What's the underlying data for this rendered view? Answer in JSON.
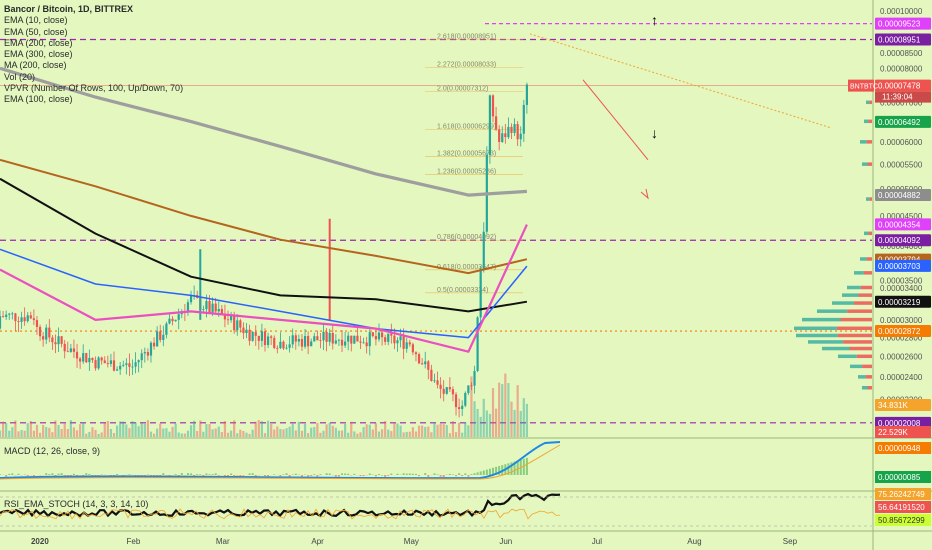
{
  "title": "Bancor / Bitcoin, 1D, BITTREX",
  "indicators": [
    "EMA (10, close)",
    "EMA (50, close)",
    "EMA (200, close)",
    "EMA (300, close)",
    "MA (200, close)",
    "Vol (20)",
    "VPVR (Number Of Rows, 100, Up/Down, 70)",
    "EMA (100, close)"
  ],
  "macd_label": "MACD (12, 26, close, 9)",
  "rsi_label": "RSI_EMA_STOCH (14, 3, 3, 14, 10)",
  "colors": {
    "background": "#e3f7bf",
    "up": "#26a69a",
    "down": "#ef5350",
    "ema10": "#16a34a",
    "ema50": "#ec4fbf",
    "ema100": "#2962ff",
    "ema200": "#111111",
    "ema300": "#b5651d",
    "ma200": "#9e9e9e",
    "level_line": "#9c27b0",
    "fib": "#f4a42a"
  },
  "price_axis": {
    "ticks": [
      "0.00010000",
      "0.00009500",
      "0.00008500",
      "0.00008000",
      "0.00007500",
      "0.00007000",
      "0.00006500",
      "0.00006000",
      "0.00005500",
      "0.00005000",
      "0.00004500",
      "0.00004000",
      "0.00003500",
      "0.00003400",
      "0.00003000",
      "0.00002800",
      "0.00002600",
      "0.00002400",
      "0.00002200",
      "0.00002000"
    ]
  },
  "price_tags": [
    {
      "text": "0.00009523",
      "color": "#e040fb"
    },
    {
      "text": "0.00008951",
      "color": "#7b1fa2"
    },
    {
      "text": "0.00007478",
      "color": "#ef5350",
      "symbol": "BNTBTC",
      "countdown": "11:39:04"
    },
    {
      "text": "0.00006492",
      "color": "#16a34a"
    },
    {
      "text": "0.00004882",
      "color": "#8d8d8d"
    },
    {
      "text": "0.00004354",
      "color": "#e040fb"
    },
    {
      "text": "0.00004092",
      "color": "#7b1fa2"
    },
    {
      "text": "0.00003794",
      "color": "#b5651d"
    },
    {
      "text": "0.00003703",
      "color": "#2962ff"
    },
    {
      "text": "0.00003219",
      "color": "#111111"
    },
    {
      "text": "0.00002872",
      "color": "#f57c00"
    },
    {
      "text": "34.831K",
      "color": "#f4a42a"
    },
    {
      "text": "0.00002008",
      "color": "#7b1fa2"
    },
    {
      "text": "22.529K",
      "color": "#ef5350"
    }
  ],
  "macd_tags": [
    {
      "text": "0.00000948",
      "color": "#f57c00"
    },
    {
      "text": "0.00000085",
      "color": "#16a34a"
    }
  ],
  "rsi_tags": [
    {
      "text": "75.26242749",
      "color": "#f4a42a"
    },
    {
      "text": "56.64191520",
      "color": "#ef5350"
    },
    {
      "text": "50.85672299",
      "color": "#ccff33"
    }
  ],
  "fib_levels": [
    {
      "ratio": "2.618",
      "price": "0.00008951"
    },
    {
      "ratio": "2.272",
      "price": "0.00008033"
    },
    {
      "ratio": "2.0",
      "price": "0.00007312"
    },
    {
      "ratio": "1.618",
      "price": "0.00006299"
    },
    {
      "ratio": "1.382",
      "price": "0.00005673"
    },
    {
      "ratio": "1.236",
      "price": "0.00005286"
    },
    {
      "ratio": "0.786",
      "price": "0.00004092"
    },
    {
      "ratio": "0.618",
      "price": "0.00003647"
    },
    {
      "ratio": "0.5",
      "price": "0.00003334"
    }
  ],
  "time_axis": [
    "2020",
    "Feb",
    "Mar",
    "Apr",
    "May",
    "Jun",
    "Jul",
    "Aug",
    "Sep"
  ],
  "chart_data": {
    "type": "candlestick",
    "title": "Bancor / Bitcoin, 1D, BITTREX",
    "symbol": "BNTBTC",
    "last_price": 7.478e-05,
    "y_scale": "log",
    "ylim": [
      1.9e-05,
      0.000102
    ],
    "x_range": [
      "2019-12-20",
      "2020-09-28"
    ],
    "ohlc_anchor_closes": [
      [
        "2020-01-01",
        2.9e-05
      ],
      [
        "2020-01-10",
        2.7e-05
      ],
      [
        "2020-01-20",
        2.55e-05
      ],
      [
        "2020-02-01",
        2.5e-05
      ],
      [
        "2020-02-12",
        2.9e-05
      ],
      [
        "2020-02-20",
        3.25e-05
      ],
      [
        "2020-03-01",
        3.05e-05
      ],
      [
        "2020-03-10",
        2.85e-05
      ],
      [
        "2020-03-20",
        2.75e-05
      ],
      [
        "2020-04-01",
        2.78e-05
      ],
      [
        "2020-04-10",
        2.8e-05
      ],
      [
        "2020-04-20",
        2.78e-05
      ],
      [
        "2020-05-01",
        2.75e-05
      ],
      [
        "2020-05-10",
        2.3e-05
      ],
      [
        "2020-05-18",
        2.15e-05
      ],
      [
        "2020-05-22",
        2.45e-05
      ],
      [
        "2020-05-25",
        4.3e-05
      ],
      [
        "2020-05-27",
        7e-05
      ],
      [
        "2020-05-30",
        6e-05
      ],
      [
        "2020-06-03",
        6.4e-05
      ],
      [
        "2020-06-06",
        6.1e-05
      ],
      [
        "2020-06-08",
        7.48e-05
      ]
    ],
    "moving_averages": [
      {
        "name": "MA (200, close)",
        "points": [
          [
            "2019-12-20",
            8e-05
          ],
          [
            "2020-01-20",
            7.15e-05
          ],
          [
            "2020-02-20",
            6.5e-05
          ],
          [
            "2020-03-20",
            5.9e-05
          ],
          [
            "2020-04-20",
            5.3e-05
          ],
          [
            "2020-05-20",
            4.88e-05
          ],
          [
            "2020-06-08",
            4.95e-05
          ]
        ]
      },
      {
        "name": "EMA (300, close)",
        "points": [
          [
            "2019-12-20",
            5.6e-05
          ],
          [
            "2020-01-20",
            5.05e-05
          ],
          [
            "2020-02-20",
            4.5e-05
          ],
          [
            "2020-03-20",
            4.1e-05
          ],
          [
            "2020-04-20",
            3.85e-05
          ],
          [
            "2020-05-20",
            3.6e-05
          ],
          [
            "2020-06-08",
            3.8e-05
          ]
        ]
      },
      {
        "name": "EMA (200, close)",
        "points": [
          [
            "2019-12-20",
            5.2e-05
          ],
          [
            "2020-01-20",
            4.2e-05
          ],
          [
            "2020-02-20",
            3.55e-05
          ],
          [
            "2020-03-20",
            3.3e-05
          ],
          [
            "2020-04-20",
            3.25e-05
          ],
          [
            "2020-05-20",
            3.1e-05
          ],
          [
            "2020-06-08",
            3.22e-05
          ]
        ]
      },
      {
        "name": "EMA (100, close)",
        "points": [
          [
            "2019-12-20",
            3.95e-05
          ],
          [
            "2020-01-20",
            3.45e-05
          ],
          [
            "2020-02-20",
            3.3e-05
          ],
          [
            "2020-03-20",
            3.1e-05
          ],
          [
            "2020-04-20",
            2.9e-05
          ],
          [
            "2020-05-20",
            2.8e-05
          ],
          [
            "2020-06-08",
            3.7e-05
          ]
        ]
      },
      {
        "name": "EMA (50, close)",
        "points": [
          [
            "2019-12-20",
            3.65e-05
          ],
          [
            "2020-01-20",
            3e-05
          ],
          [
            "2020-02-20",
            3.1e-05
          ],
          [
            "2020-03-20",
            3e-05
          ],
          [
            "2020-04-20",
            2.9e-05
          ],
          [
            "2020-05-20",
            2.65e-05
          ],
          [
            "2020-06-08",
            4.35e-05
          ]
        ]
      }
    ]
  }
}
